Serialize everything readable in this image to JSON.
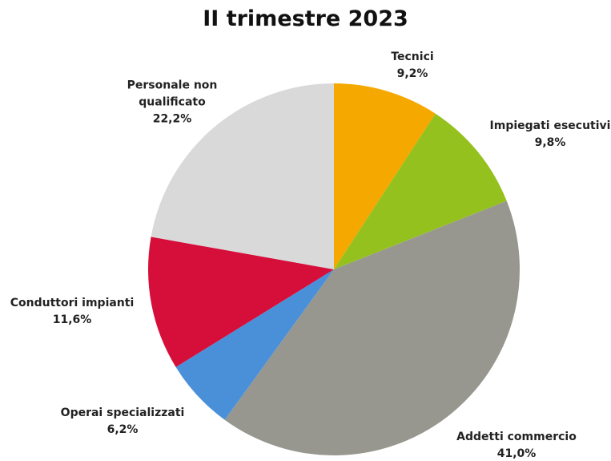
{
  "chart_data": {
    "type": "pie",
    "title": "II trimestre 2023",
    "categories": [
      "Tecnici",
      "Impiegati esecutivi",
      "Addetti commercio",
      "Operai specializzati",
      "Conduttori impianti",
      "Personale non qualificato"
    ],
    "values": [
      9.2,
      9.8,
      41.0,
      6.2,
      11.6,
      22.2
    ],
    "value_labels": [
      "9,2%",
      "9,8%",
      "41,0%",
      "6,2%",
      "11,6%",
      "22,2%"
    ],
    "colors": [
      "#f5a800",
      "#95c11f",
      "#979790",
      "#4a90d9",
      "#d50f3a",
      "#d9d9d9"
    ]
  }
}
